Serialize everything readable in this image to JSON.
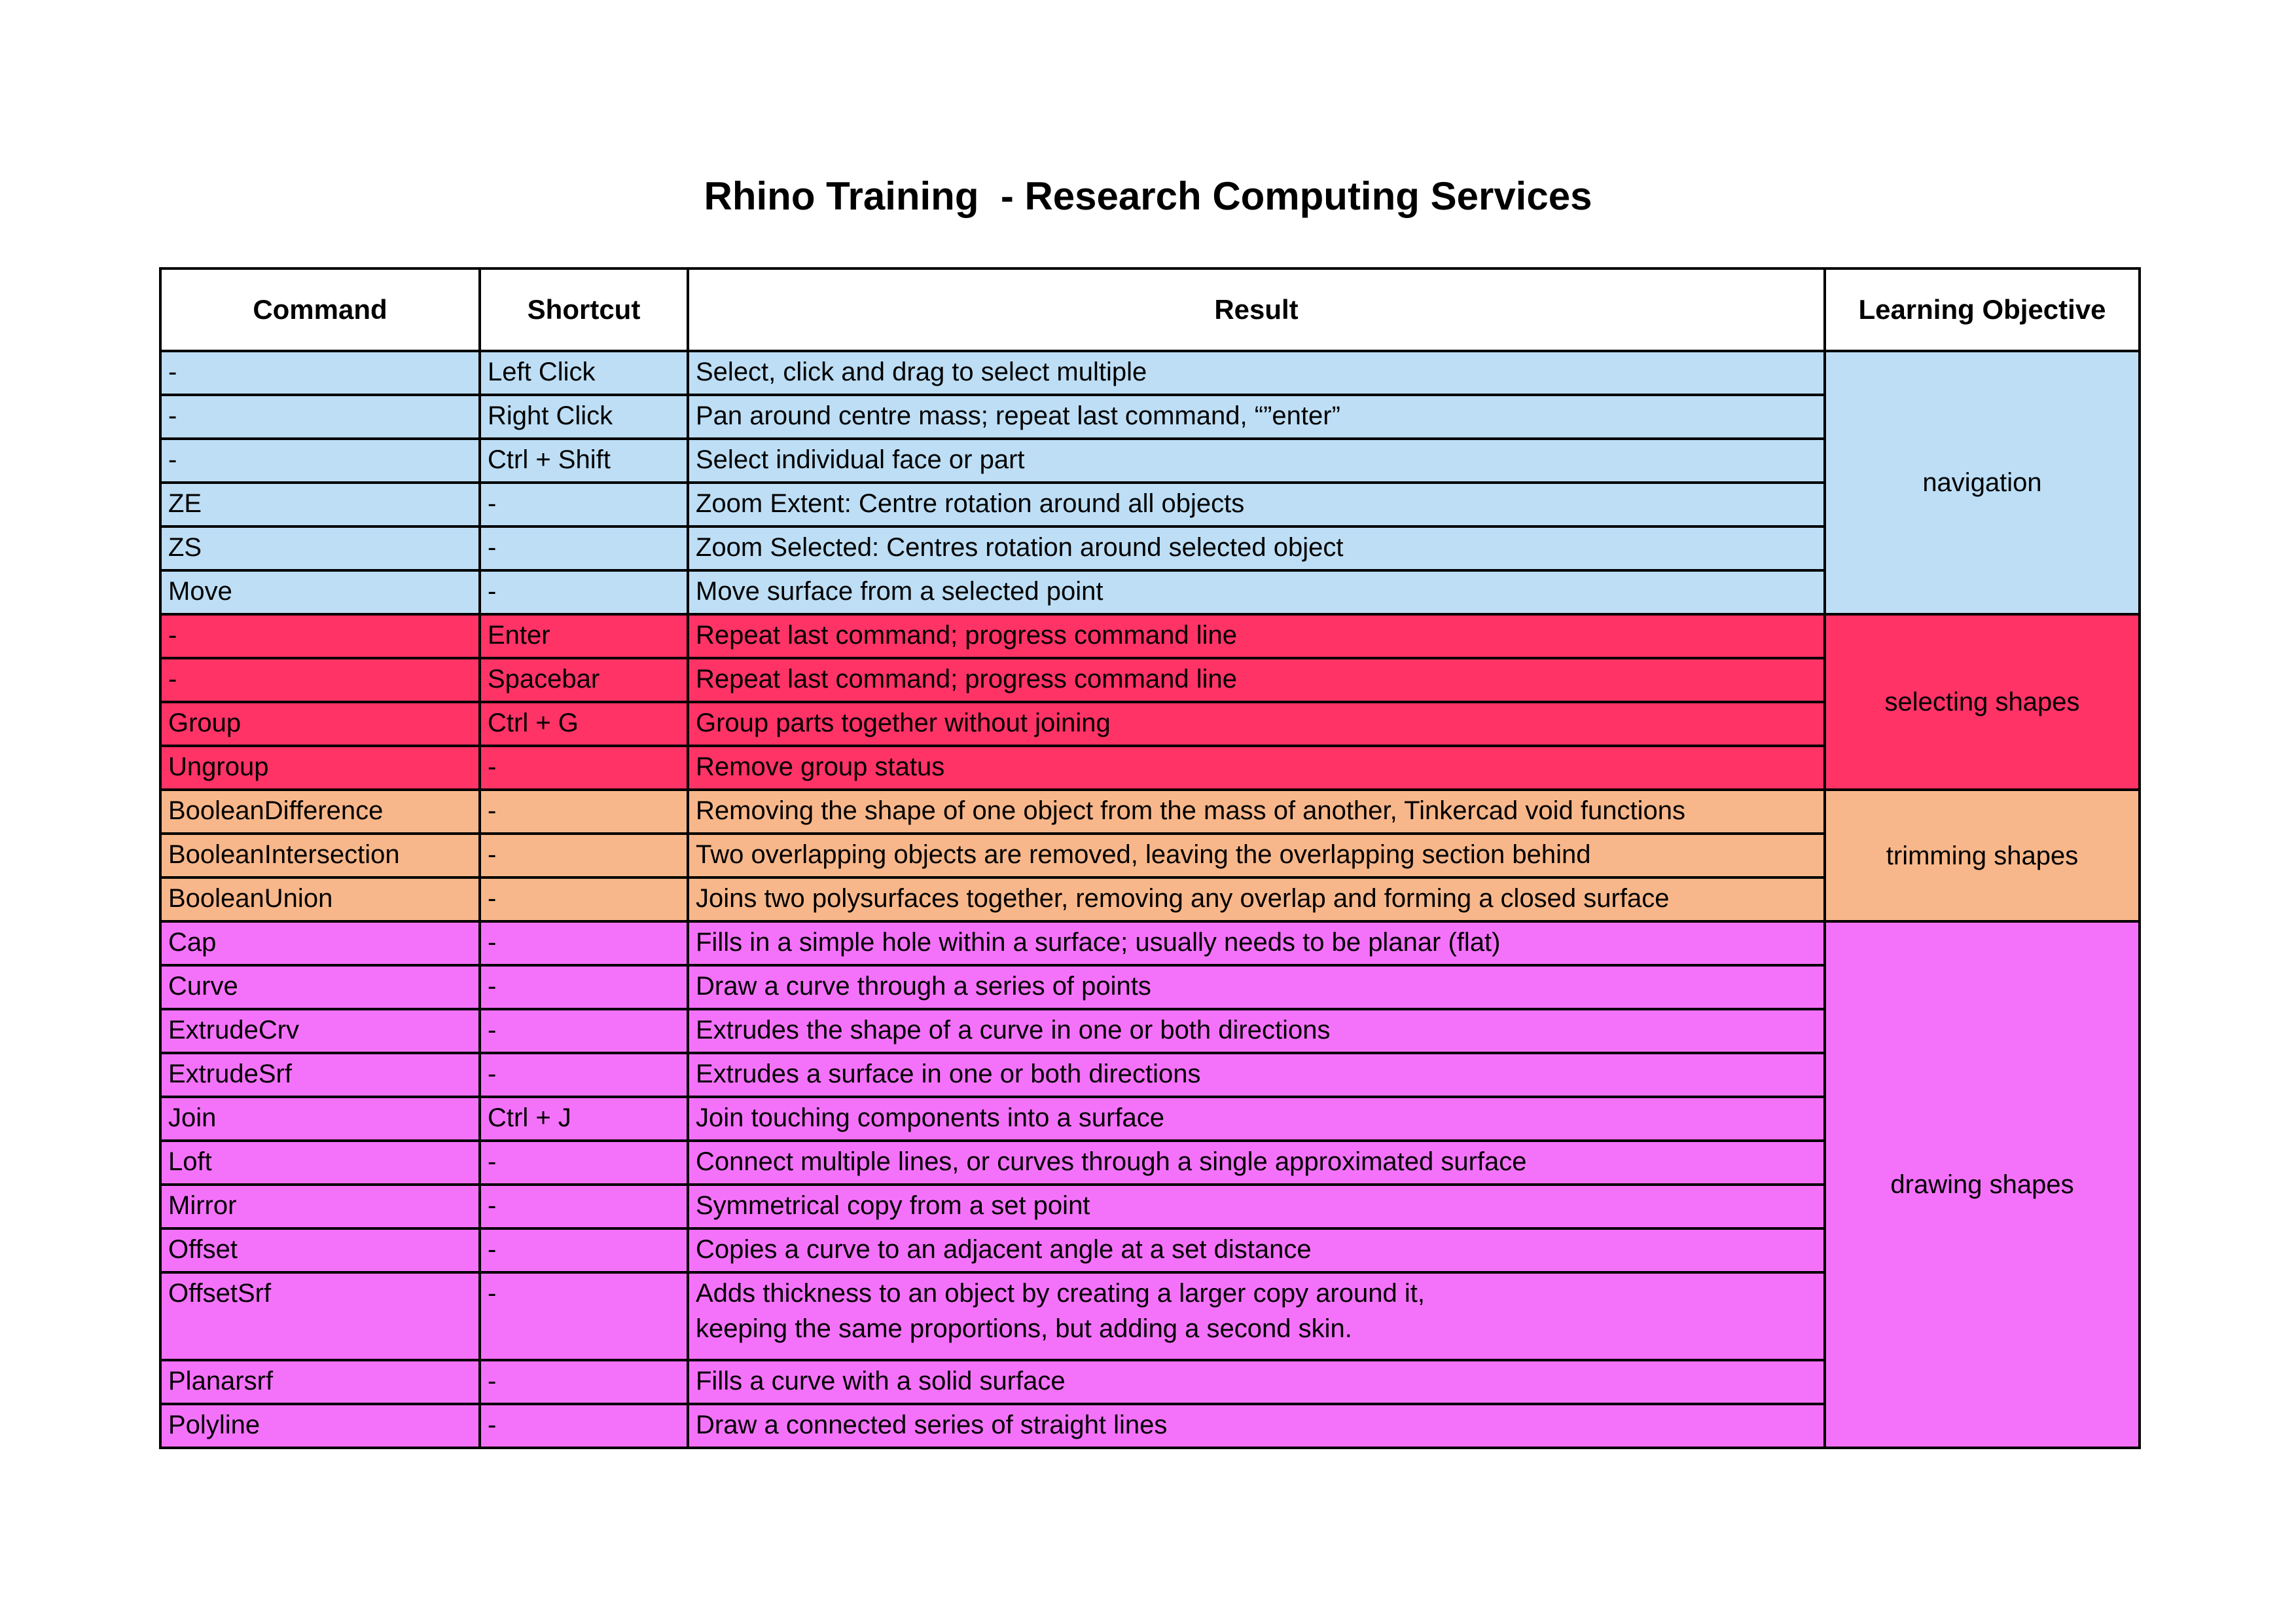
{
  "title": "Rhino Training  - Research Computing Services",
  "colors": {
    "navigation": "#BDDEF5",
    "selecting_shapes": "#FF3366",
    "trimming_shapes": "#F8B78A",
    "drawing_shapes": "#F472FA"
  },
  "table": {
    "headers": {
      "command": "Command",
      "shortcut": "Shortcut",
      "result": "Result",
      "objective": "Learning Objective"
    },
    "groups": [
      {
        "objective": "navigation",
        "color": "#BDDEF5",
        "rows": [
          {
            "command": "-",
            "shortcut": "Left Click",
            "result": "Select, click and drag to select multiple"
          },
          {
            "command": "-",
            "shortcut": "Right Click",
            "result": "Pan around centre mass; repeat last command, “”enter”"
          },
          {
            "command": "-",
            "shortcut": "Ctrl + Shift",
            "result": "Select individual face or part"
          },
          {
            "command": "ZE",
            "shortcut": "-",
            "result": "Zoom Extent: Centre rotation around all objects"
          },
          {
            "command": "ZS",
            "shortcut": "-",
            "result": "Zoom Selected: Centres rotation around selected object"
          },
          {
            "command": "Move",
            "shortcut": "-",
            "result": "Move surface from a selected point"
          }
        ]
      },
      {
        "objective": "selecting shapes",
        "color": "#FF3366",
        "rows": [
          {
            "command": "-",
            "shortcut": "Enter",
            "result": "Repeat last command; progress command line"
          },
          {
            "command": "-",
            "shortcut": "Spacebar",
            "result": "Repeat last command; progress command line"
          },
          {
            "command": "Group",
            "shortcut": "Ctrl + G",
            "result": "Group parts together without joining"
          },
          {
            "command": "Ungroup",
            "shortcut": "-",
            "result": "Remove group status"
          }
        ]
      },
      {
        "objective": "trimming shapes",
        "color": "#F8B78A",
        "rows": [
          {
            "command": "BooleanDifference",
            "shortcut": "-",
            "result": "Removing the shape of one object from the mass of another, Tinkercad void functions"
          },
          {
            "command": "BooleanIntersection",
            "shortcut": "-",
            "result": "Two overlapping objects are removed, leaving the overlapping section behind"
          },
          {
            "command": "BooleanUnion",
            "shortcut": "-",
            "result": "Joins two polysurfaces together, removing any overlap and forming a closed surface"
          }
        ]
      },
      {
        "objective": "drawing shapes",
        "color": "#F472FA",
        "rows": [
          {
            "command": "Cap",
            "shortcut": "-",
            "result": "Fills in a simple hole within a surface; usually needs to be planar (flat)"
          },
          {
            "command": "Curve",
            "shortcut": "-",
            "result": "Draw a curve through a series of points"
          },
          {
            "command": "ExtrudeCrv",
            "shortcut": "-",
            "result": "Extrudes the shape of a curve in one or both directions"
          },
          {
            "command": "ExtrudeSrf",
            "shortcut": "-",
            "result": "Extrudes a surface in one or both directions"
          },
          {
            "command": "Join",
            "shortcut": "Ctrl + J",
            "result": "Join touching components into a surface"
          },
          {
            "command": "Loft",
            "shortcut": "-",
            "result": "Connect multiple lines, or curves through a single approximated surface"
          },
          {
            "command": "Mirror",
            "shortcut": "-",
            "result": "Symmetrical copy from a set point"
          },
          {
            "command": "Offset",
            "shortcut": "-",
            "result": "Copies a curve to an adjacent angle at a set distance"
          },
          {
            "command": "OffsetSrf",
            "shortcut": "-",
            "result": "Adds thickness to an object by creating a larger copy around it,\nkeeping the same proportions, but adding a second skin."
          },
          {
            "command": "Planarsrf",
            "shortcut": "-",
            "result": "Fills a curve with a solid surface"
          },
          {
            "command": "Polyline",
            "shortcut": "-",
            "result": "Draw a connected series of straight lines"
          }
        ]
      }
    ]
  }
}
